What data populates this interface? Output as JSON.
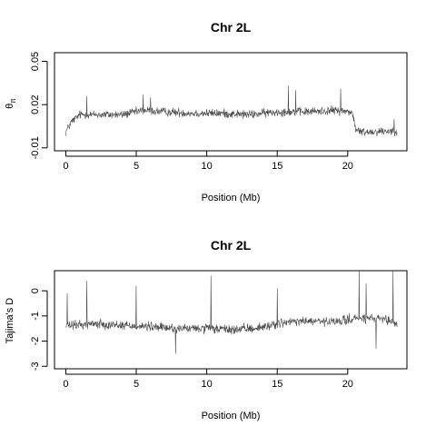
{
  "chart_data": [
    {
      "type": "line",
      "title": "Chr 2L",
      "xlabel": "Position (Mb)",
      "ylabel": "θπ",
      "ylabel_main": "θ",
      "ylabel_sub": "π",
      "xlim": [
        -0.8,
        24.2
      ],
      "ylim": [
        -0.012,
        0.056
      ],
      "xticks": [
        0,
        5,
        10,
        15,
        20
      ],
      "xtick_labels": [
        "0",
        "5",
        "10",
        "15",
        "20"
      ],
      "yticks": [
        -0.01,
        0.02,
        0.05
      ],
      "ytick_labels": [
        "-0.01",
        "0.02",
        "0.05"
      ],
      "grid": false,
      "series": [
        {
          "color": "#4a4a4a",
          "x_range": [
            0,
            23.5
          ],
          "profile_x": [
            0,
            0.4,
            1.0,
            2.0,
            4.0,
            5.5,
            7.0,
            9.0,
            11.0,
            13.0,
            15.0,
            17.0,
            19.0,
            20.3,
            20.6,
            21.0,
            23.5
          ],
          "profile_y": [
            0.001,
            0.008,
            0.013,
            0.013,
            0.013,
            0.016,
            0.015,
            0.014,
            0.014,
            0.013,
            0.015,
            0.015,
            0.016,
            0.015,
            0.002,
            0.001,
            0.002
          ],
          "noise": 0.0045,
          "spikes": [
            [
              1.5,
              0.026
            ],
            [
              5.5,
              0.027
            ],
            [
              6.0,
              0.025
            ],
            [
              15.8,
              0.033
            ],
            [
              16.3,
              0.03
            ],
            [
              19.5,
              0.031
            ],
            [
              23.3,
              0.01
            ]
          ]
        }
      ]
    },
    {
      "type": "line",
      "title": "Chr 2L",
      "xlabel": "Position (Mb)",
      "ylabel": "Tajima's D",
      "xlim": [
        -0.8,
        24.2
      ],
      "ylim": [
        -3.1,
        0.8
      ],
      "xticks": [
        0,
        5,
        10,
        15,
        20
      ],
      "xtick_labels": [
        "0",
        "5",
        "10",
        "15",
        "20"
      ],
      "yticks": [
        -3,
        -2,
        -1,
        0
      ],
      "ytick_labels": [
        "-3",
        "-2",
        "-1",
        "0"
      ],
      "grid": false,
      "series": [
        {
          "color": "#4a4a4a",
          "x_range": [
            0,
            23.5
          ],
          "profile_x": [
            0,
            2.0,
            5.0,
            8.0,
            10.0,
            12.0,
            14.0,
            15.0,
            17.0,
            19.0,
            20.5,
            22.0,
            23.5
          ],
          "profile_y": [
            -1.4,
            -1.3,
            -1.4,
            -1.5,
            -1.5,
            -1.55,
            -1.45,
            -1.3,
            -1.2,
            -1.25,
            -1.1,
            -1.1,
            -1.3
          ],
          "noise": 0.28,
          "spikes": [
            [
              0.1,
              -0.1
            ],
            [
              1.5,
              0.4
            ],
            [
              5.0,
              0.2
            ],
            [
              10.3,
              0.6
            ],
            [
              15.0,
              0.1
            ],
            [
              20.8,
              0.8
            ],
            [
              21.3,
              0.3
            ],
            [
              23.2,
              0.8
            ],
            [
              22.0,
              -2.3
            ],
            [
              7.8,
              -2.5
            ]
          ]
        }
      ]
    }
  ]
}
